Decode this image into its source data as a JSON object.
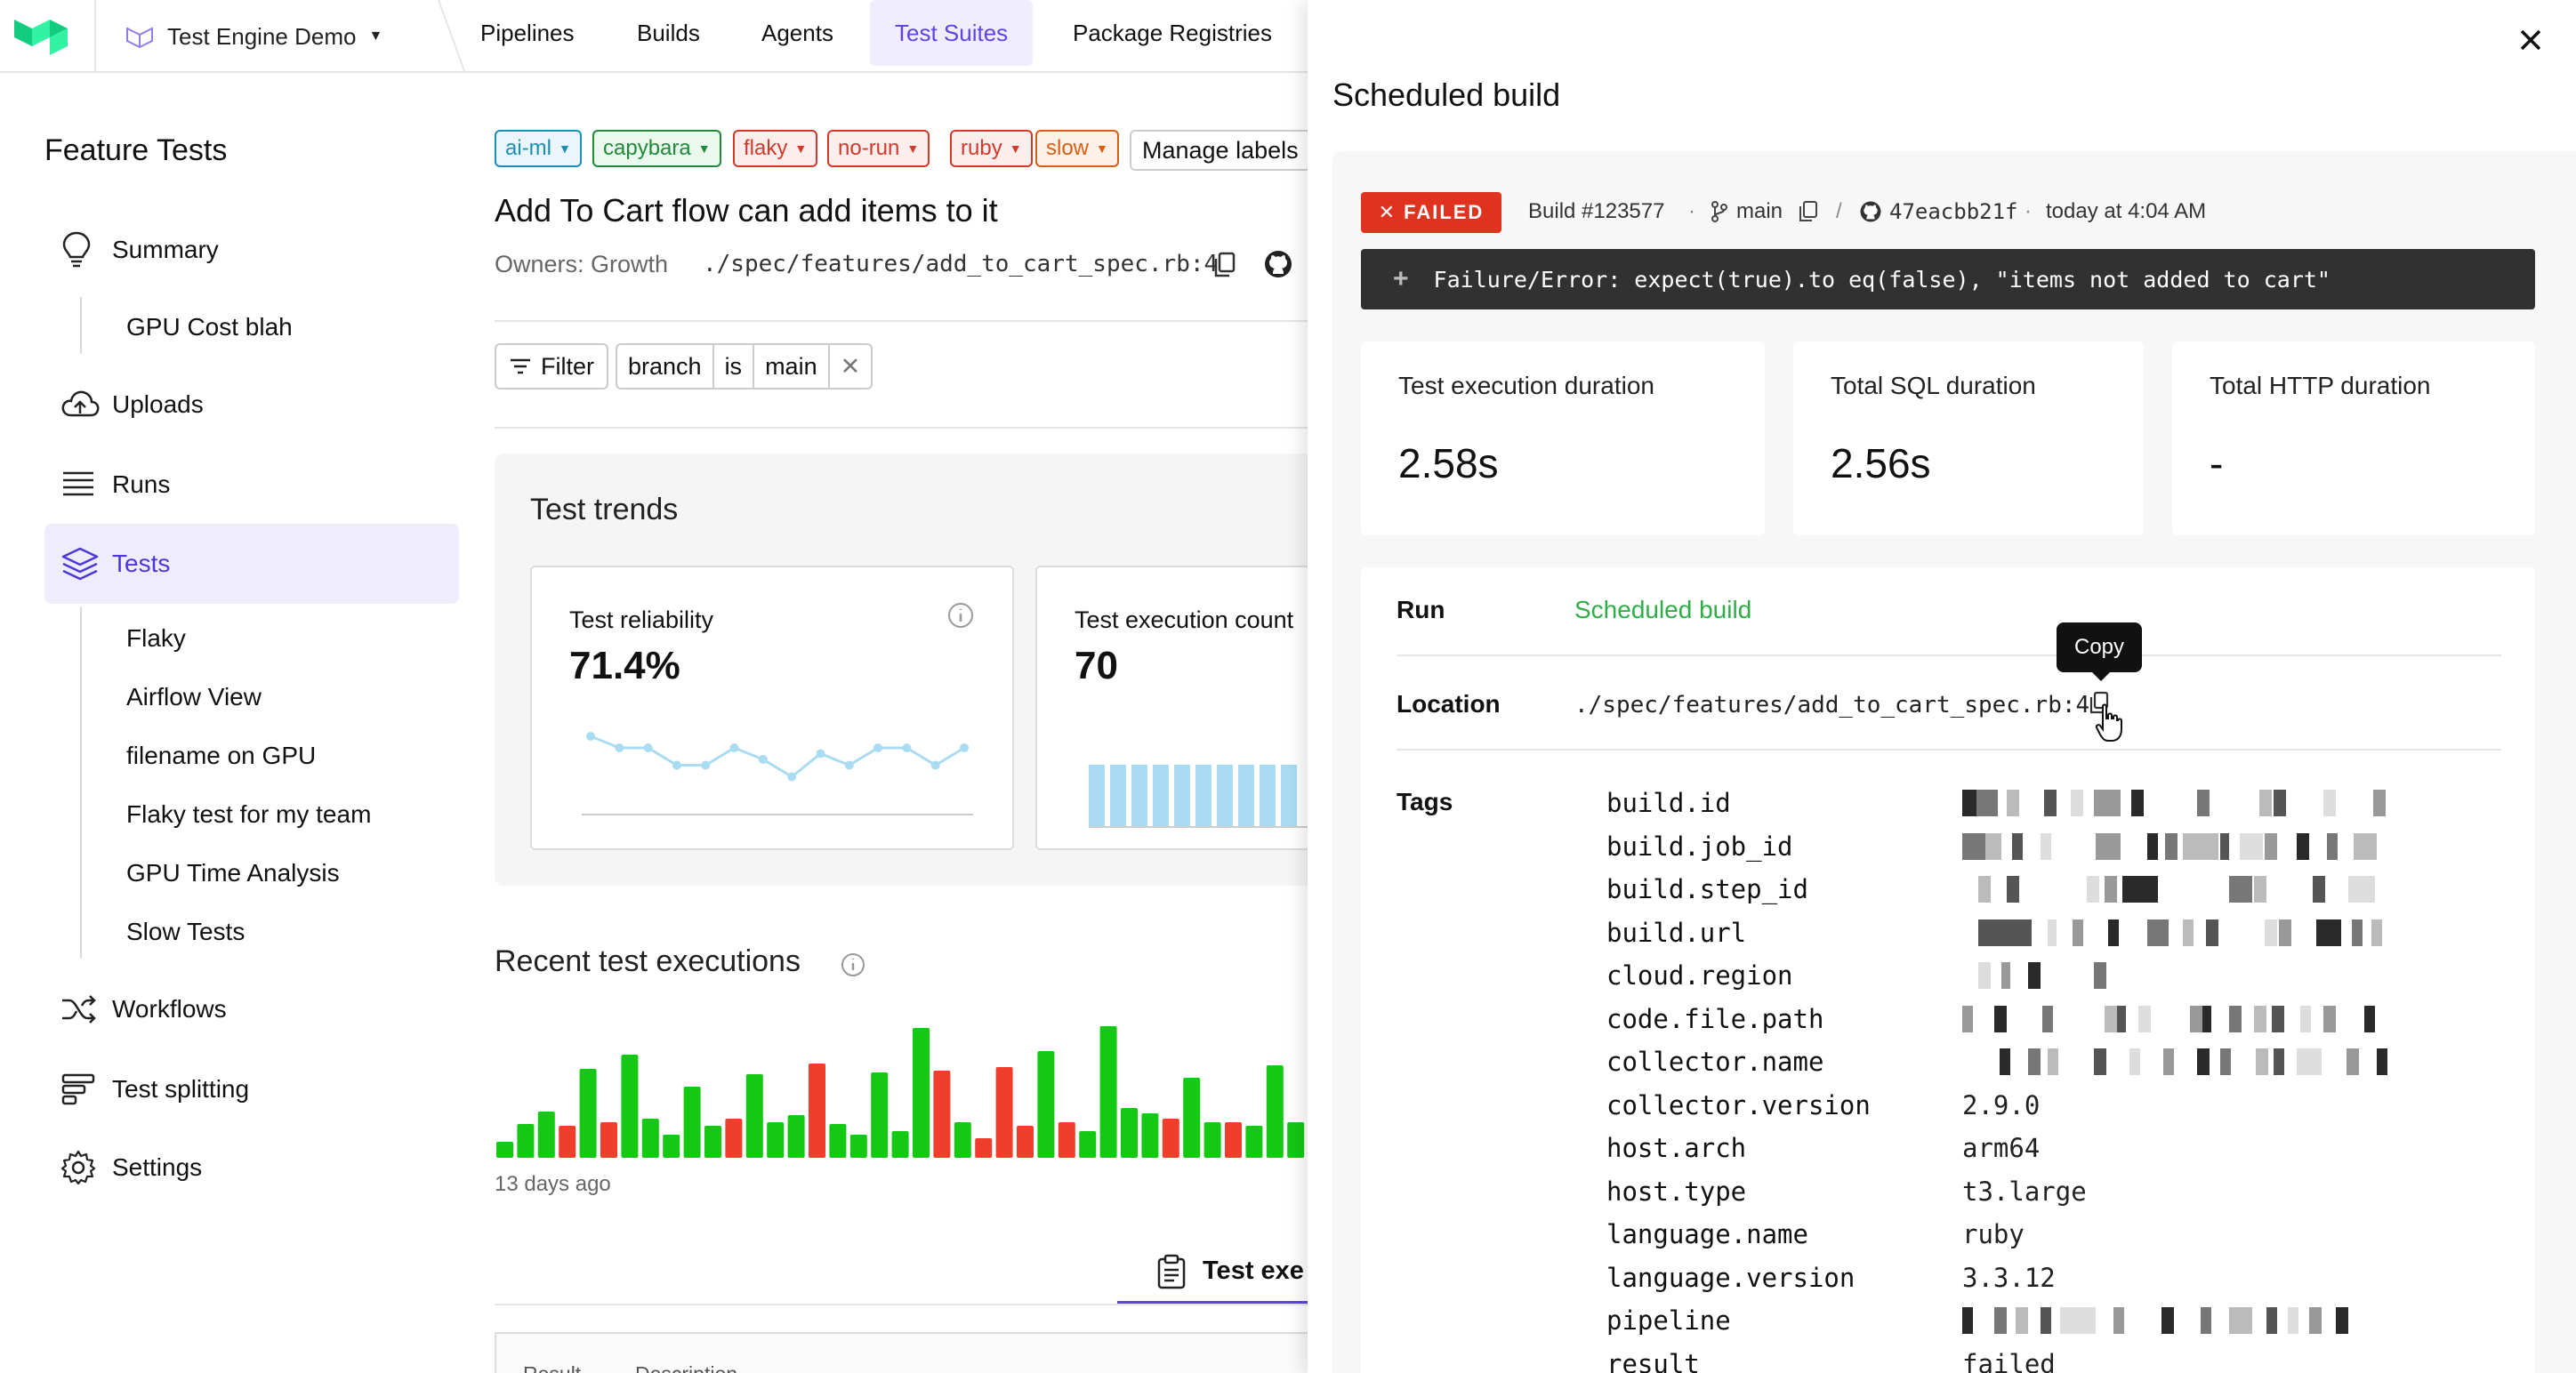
{
  "topnav": {
    "org_name": "Test Engine Demo",
    "tabs": [
      {
        "label": "Pipelines"
      },
      {
        "label": "Builds"
      },
      {
        "label": "Agents"
      },
      {
        "label": "Test Suites",
        "active": true
      },
      {
        "label": "Package Registries"
      }
    ]
  },
  "sidebar": {
    "title": "Feature Tests",
    "summary": "Summary",
    "summary_sub": "GPU Cost blah",
    "uploads": "Uploads",
    "runs": "Runs",
    "tests": "Tests",
    "tests_sub": [
      "Flaky",
      "Airflow View",
      "filename on GPU",
      "Flaky test for my team",
      "GPU Time Analysis",
      "Slow Tests"
    ],
    "workflows": "Workflows",
    "test_splitting": "Test splitting",
    "settings": "Settings"
  },
  "main": {
    "labels": [
      {
        "text": "ai-ml",
        "color": "#1a8fb5",
        "bg": "#eaf6fb"
      },
      {
        "text": "capybara",
        "color": "#1e8a3a",
        "bg": "#ebf8ee"
      },
      {
        "text": "flaky",
        "color": "#d13a2a",
        "bg": "#fdeeee"
      },
      {
        "text": "no-run",
        "color": "#d13a2a",
        "bg": "#fdeeee"
      },
      {
        "text": "ruby",
        "color": "#d13a2a",
        "bg": "#fdeeee"
      },
      {
        "text": "slow",
        "color": "#d95d12",
        "bg": "#fdf1e8"
      }
    ],
    "manage_labels": "Manage labels",
    "test_title": "Add To Cart flow can add items to it",
    "owners": "Owners: Growth",
    "path": "./spec/features/add_to_cart_spec.rb:4",
    "filter": {
      "button": "Filter",
      "field": "branch",
      "op": "is",
      "value": "main"
    },
    "trends_title": "Test trends",
    "reliability": {
      "label": "Test reliability",
      "value": "71.4%",
      "series": [
        8,
        6,
        6,
        3,
        3,
        6,
        4,
        1,
        5,
        3,
        6,
        6,
        3,
        6
      ]
    },
    "execution_count": {
      "label": "Test execution count",
      "value": "70"
    },
    "recent_title": "Recent test executions",
    "days_ago": "13 days ago",
    "recent_executions": [
      {
        "h": 18,
        "s": "pass"
      },
      {
        "h": 38,
        "s": "pass"
      },
      {
        "h": 52,
        "s": "pass"
      },
      {
        "h": 36,
        "s": "fail"
      },
      {
        "h": 100,
        "s": "pass"
      },
      {
        "h": 40,
        "s": "fail"
      },
      {
        "h": 116,
        "s": "pass"
      },
      {
        "h": 44,
        "s": "pass"
      },
      {
        "h": 26,
        "s": "pass"
      },
      {
        "h": 80,
        "s": "pass"
      },
      {
        "h": 36,
        "s": "pass"
      },
      {
        "h": 44,
        "s": "fail"
      },
      {
        "h": 94,
        "s": "pass"
      },
      {
        "h": 40,
        "s": "pass"
      },
      {
        "h": 48,
        "s": "pass"
      },
      {
        "h": 106,
        "s": "fail"
      },
      {
        "h": 38,
        "s": "pass"
      },
      {
        "h": 26,
        "s": "pass"
      },
      {
        "h": 96,
        "s": "pass"
      },
      {
        "h": 30,
        "s": "pass"
      },
      {
        "h": 146,
        "s": "pass"
      },
      {
        "h": 98,
        "s": "fail"
      },
      {
        "h": 40,
        "s": "pass"
      },
      {
        "h": 22,
        "s": "fail"
      },
      {
        "h": 102,
        "s": "fail"
      },
      {
        "h": 36,
        "s": "fail"
      },
      {
        "h": 120,
        "s": "pass"
      },
      {
        "h": 40,
        "s": "fail"
      },
      {
        "h": 30,
        "s": "pass"
      },
      {
        "h": 148,
        "s": "pass"
      },
      {
        "h": 56,
        "s": "pass"
      },
      {
        "h": 50,
        "s": "pass"
      },
      {
        "h": 44,
        "s": "fail"
      },
      {
        "h": 90,
        "s": "pass"
      },
      {
        "h": 40,
        "s": "pass"
      },
      {
        "h": 40,
        "s": "fail"
      },
      {
        "h": 36,
        "s": "pass"
      },
      {
        "h": 104,
        "s": "pass"
      },
      {
        "h": 40,
        "s": "pass"
      },
      {
        "h": 22,
        "s": "pass"
      }
    ],
    "test_exe_tab": "Test exe",
    "table_headers": [
      "Result",
      "Description"
    ]
  },
  "drawer": {
    "title": "Scheduled build",
    "status": "FAILED",
    "build": "Build #123577",
    "branch": "main",
    "commit": "47eacbb21f",
    "time": "today at 4:04 AM",
    "error": "Failure/Error: expect(true).to eq(false), \"items not added to cart\"",
    "stats": [
      {
        "label": "Test execution duration",
        "value": "2.58s"
      },
      {
        "label": "Total SQL duration",
        "value": "2.56s"
      },
      {
        "label": "Total HTTP duration",
        "value": "-"
      }
    ],
    "run_label": "Run",
    "run_value": "Scheduled build",
    "location_label": "Location",
    "location_value": "./spec/features/add_to_cart_spec.rb:4",
    "copy_tooltip": "Copy",
    "tags_label": "Tags",
    "tags": [
      {
        "key": "build.id",
        "value": null
      },
      {
        "key": "build.job_id",
        "value": null
      },
      {
        "key": "build.step_id",
        "value": null
      },
      {
        "key": "build.url",
        "value": null
      },
      {
        "key": "cloud.region",
        "value": null
      },
      {
        "key": "code.file.path",
        "value": null
      },
      {
        "key": "collector.name",
        "value": null
      },
      {
        "key": "collector.version",
        "value": "2.9.0"
      },
      {
        "key": "host.arch",
        "value": "arm64"
      },
      {
        "key": "host.type",
        "value": "t3.large"
      },
      {
        "key": "language.name",
        "value": "ruby"
      },
      {
        "key": "language.version",
        "value": "3.3.12"
      },
      {
        "key": "pipeline",
        "value": null
      },
      {
        "key": "result",
        "value": "failed"
      }
    ]
  },
  "colors": {
    "accent": "#5b45e6",
    "pass": "#14c814",
    "fail": "#ef3e2c",
    "success_text": "#2fae48",
    "failed_badge": "#e0331f"
  }
}
